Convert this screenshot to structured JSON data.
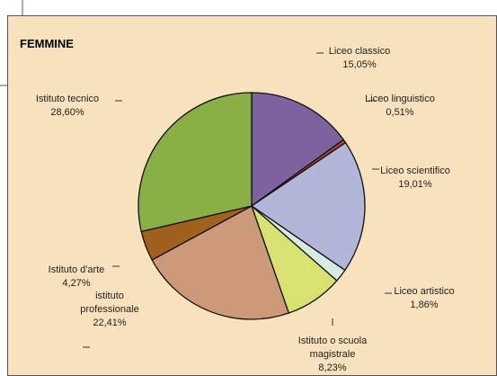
{
  "chart_data": {
    "type": "pie",
    "title": "FEMMINE",
    "categories": [
      "Liceo classico",
      "Liceo linguistico",
      "Liceo scientifico",
      "Liceo artistico",
      "Istituto o scuola magistrale",
      "istituto professionale",
      "Istituto d'arte",
      "Istituto tecnico"
    ],
    "values": [
      15.05,
      0.51,
      19.01,
      1.86,
      8.23,
      22.41,
      4.27,
      28.6
    ],
    "value_labels": [
      "15,05%",
      "0,51%",
      "19,01%",
      "1,86%",
      "8,23%",
      "22,41%",
      "4,27%",
      "28,60%"
    ],
    "colors": [
      "#7e62a0",
      "#a84a2a",
      "#b2b6d8",
      "#d6ece2",
      "#d8e270",
      "#cc9a78",
      "#a0601e",
      "#88b046"
    ]
  }
}
